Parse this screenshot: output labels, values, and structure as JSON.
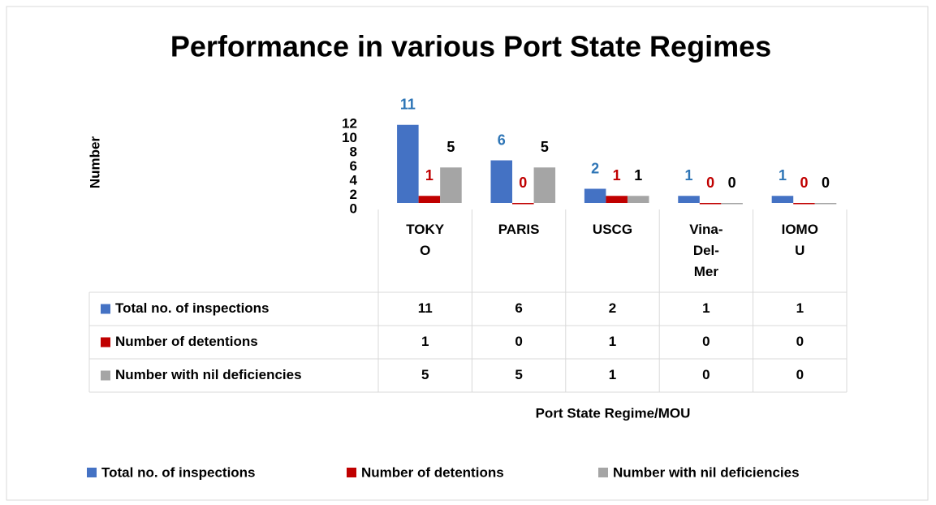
{
  "chart_data": {
    "type": "bar",
    "title": "Performance in various Port State Regimes",
    "y_label": "Number",
    "x_label": "Port State Regime/MOU",
    "categories": [
      "TOKYO",
      "PARIS",
      "USCG",
      "Vina-Del-Mer",
      "IOMOU"
    ],
    "series": [
      {
        "name": "Total no. of inspections",
        "color": "#4472c4",
        "label_color": "#2e75b6",
        "values": [
          11,
          6,
          2,
          1,
          1
        ]
      },
      {
        "name": "Number of detentions",
        "color": "#c00000",
        "label_color": "#c00000",
        "values": [
          1,
          0,
          1,
          0,
          0
        ]
      },
      {
        "name": "Number with nil deficiencies",
        "color": "#a5a5a5",
        "label_color": "#000000",
        "values": [
          5,
          5,
          1,
          0,
          0
        ]
      }
    ],
    "ylim": [
      0,
      12
    ],
    "yticks": [
      0,
      2,
      4,
      6,
      8,
      10,
      12
    ],
    "grid": false,
    "legend": "bottom",
    "data_table": true
  }
}
